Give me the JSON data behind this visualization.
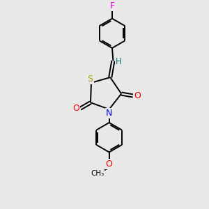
{
  "background_color": "#e8e8e8",
  "bond_color": "#000000",
  "atom_colors": {
    "F": "#dd00dd",
    "S": "#aaaa00",
    "N": "#0000ee",
    "O": "#ee0000",
    "H": "#007070",
    "C": "#000000"
  },
  "figsize": [
    3.0,
    3.0
  ],
  "dpi": 100,
  "lw": 1.4
}
